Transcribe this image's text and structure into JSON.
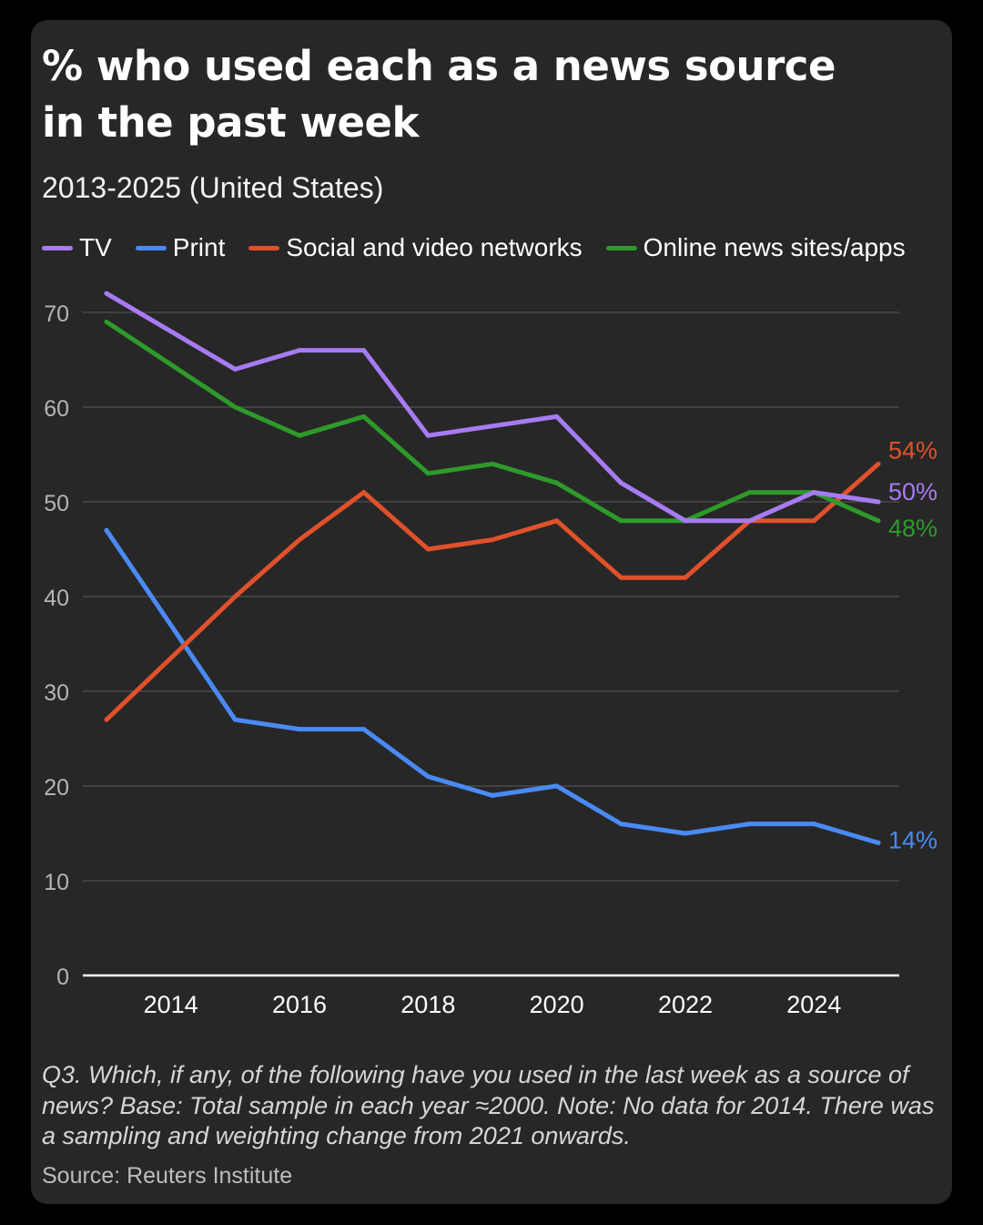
{
  "title": "% who used each as a news source in the past week",
  "subtitle": "2013-2025 (United States)",
  "footnote": "Q3. Which, if any, of the following have you used in the last week as a source of news? Base: Total sample in each year ≈2000. Note: No data for 2014. There was a sampling and weighting change from 2021 onwards.",
  "source": "Source: Reuters Institute",
  "colors": {
    "background": "#000000",
    "card": "#272727",
    "grid": "#4a4a4a",
    "axis": "#ffffff",
    "tv": "#a77bf3",
    "print": "#4a8af4",
    "social": "#e0512b",
    "online": "#2e9a2a"
  },
  "chart_data": {
    "type": "line",
    "title": "% who used each as a news source in the past week",
    "subtitle": "2013-2025 (United States)",
    "xlabel": "",
    "ylabel": "",
    "xlim": [
      2013,
      2025
    ],
    "ylim": [
      0,
      70
    ],
    "yticks": [
      0,
      10,
      20,
      30,
      40,
      50,
      60,
      70
    ],
    "xticks": [
      2014,
      2016,
      2018,
      2020,
      2022,
      2024
    ],
    "grid": true,
    "legend_position": "top",
    "x": [
      2013,
      2015,
      2016,
      2017,
      2018,
      2019,
      2020,
      2021,
      2022,
      2023,
      2024,
      2025
    ],
    "series": [
      {
        "key": "tv",
        "name": "TV",
        "color": "#a77bf3",
        "end_label": "50%",
        "values": [
          72,
          64,
          66,
          66,
          57,
          58,
          59,
          52,
          48,
          48,
          51,
          50
        ]
      },
      {
        "key": "print",
        "name": "Print",
        "color": "#4a8af4",
        "end_label": "14%",
        "values": [
          47,
          27,
          26,
          26,
          21,
          19,
          20,
          16,
          15,
          16,
          16,
          14
        ]
      },
      {
        "key": "social",
        "name": "Social and video networks",
        "color": "#e0512b",
        "end_label": "54%",
        "values": [
          27,
          40,
          46,
          51,
          45,
          46,
          48,
          42,
          42,
          48,
          48,
          54
        ]
      },
      {
        "key": "online",
        "name": "Online news sites/apps",
        "color": "#2e9a2a",
        "end_label": "48%",
        "values": [
          69,
          60,
          57,
          59,
          53,
          54,
          52,
          48,
          48,
          51,
          51,
          48
        ]
      }
    ]
  }
}
